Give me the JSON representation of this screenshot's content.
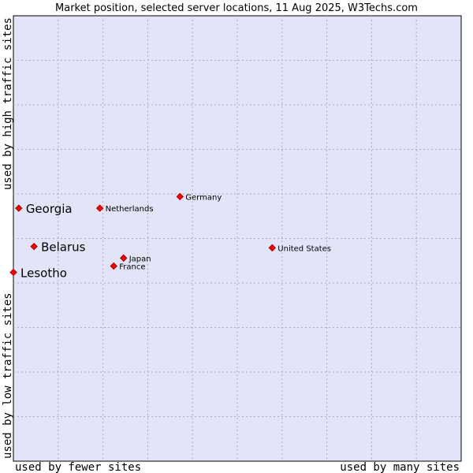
{
  "chart_data": {
    "type": "scatter",
    "title": "Market position, selected server locations, 11 Aug 2025, W3Techs.com",
    "xlabel_low": "used by fewer sites",
    "xlabel_high": "used by many sites",
    "ylabel_low": "used by low traffic sites",
    "ylabel_high": "used by high traffic sites",
    "xlim": [
      0,
      100
    ],
    "ylim": [
      0,
      100
    ],
    "grid": true,
    "points": [
      {
        "name": "Georgia",
        "x": 1.2,
        "y": 56.8,
        "highlight": true
      },
      {
        "name": "Belarus",
        "x": 4.6,
        "y": 48.2,
        "highlight": true
      },
      {
        "name": "Lesotho",
        "x": 0.0,
        "y": 42.4,
        "highlight": true
      },
      {
        "name": "Netherlands",
        "x": 19.3,
        "y": 56.8,
        "highlight": false
      },
      {
        "name": "Germany",
        "x": 37.2,
        "y": 59.4,
        "highlight": false
      },
      {
        "name": "Japan",
        "x": 24.6,
        "y": 45.6,
        "highlight": false
      },
      {
        "name": "France",
        "x": 22.4,
        "y": 43.8,
        "highlight": false
      },
      {
        "name": "United States",
        "x": 57.8,
        "y": 47.9,
        "highlight": false
      }
    ]
  }
}
